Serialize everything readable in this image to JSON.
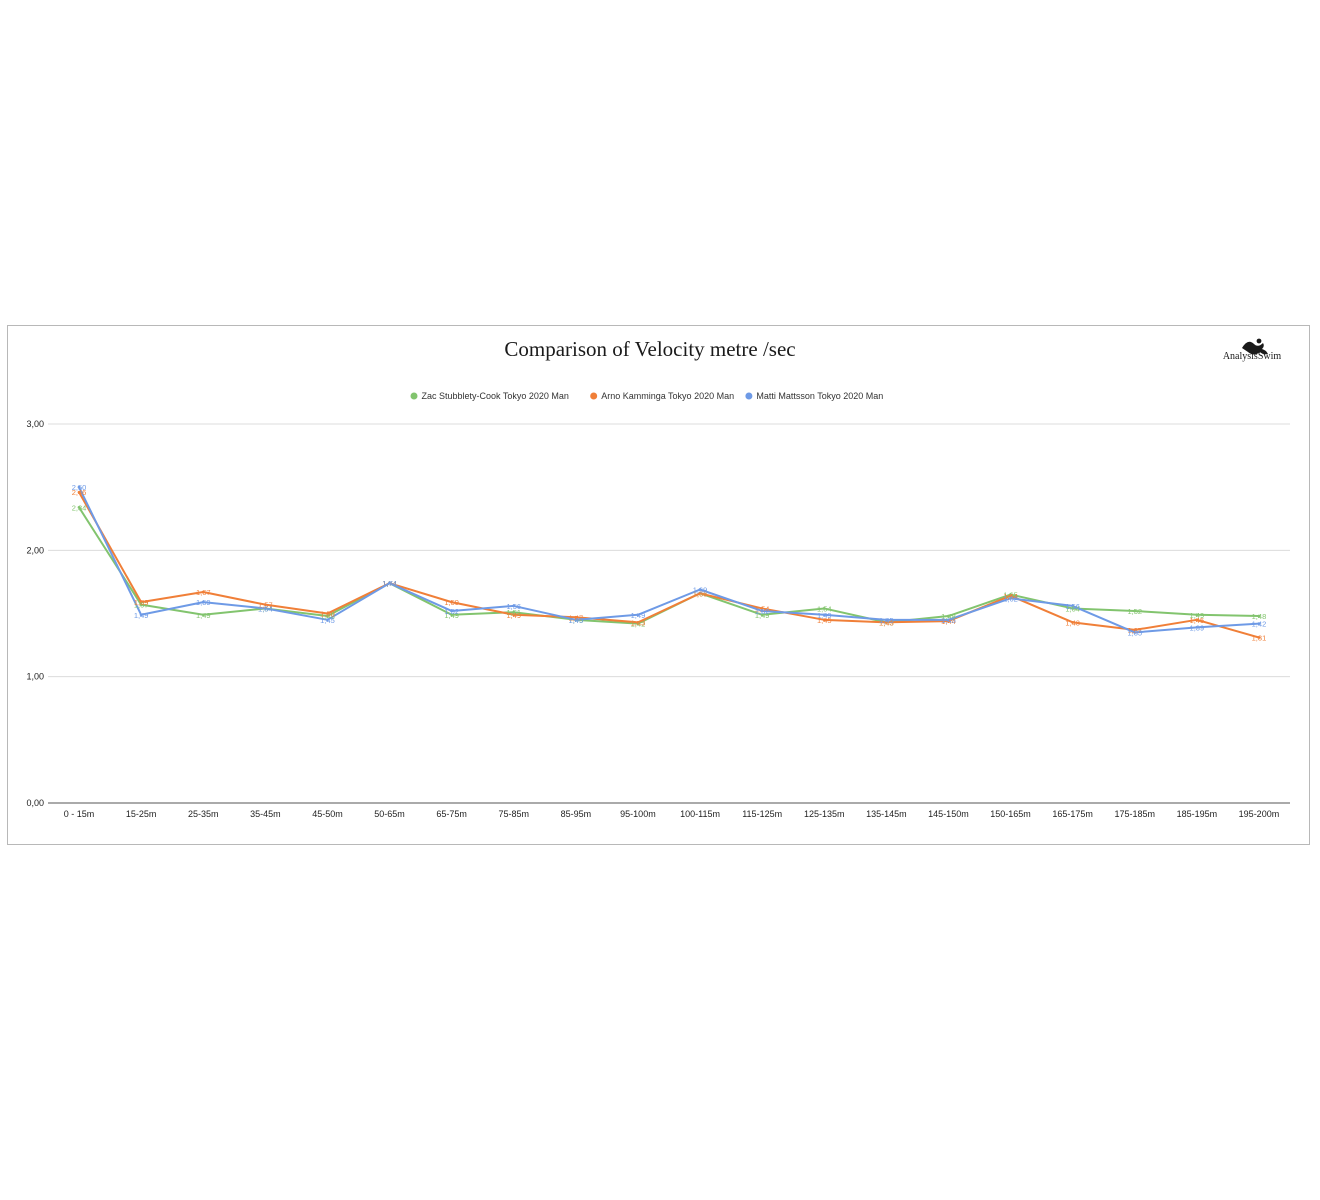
{
  "chart_data": {
    "type": "line",
    "title": "Comparison of Velocity metre /sec",
    "logo": "AnalysisSwim",
    "xlabel": "",
    "ylabel": "",
    "ylim": [
      0,
      3
    ],
    "y_ticks": [
      "0,00",
      "1,00",
      "2,00",
      "3,00"
    ],
    "y_tick_values": [
      0,
      1,
      2,
      3
    ],
    "legend_position": "top",
    "grid": true,
    "categories": [
      "0 - 15m",
      "15-25m",
      "25-35m",
      "35-45m",
      "45-50m",
      "50-65m",
      "65-75m",
      "75-85m",
      "85-95m",
      "95-100m",
      "100-115m",
      "115-125m",
      "125-135m",
      "135-145m",
      "145-150m",
      "150-165m",
      "165-175m",
      "175-185m",
      "185-195m",
      "195-200m"
    ],
    "series": [
      {
        "name": "Zac Stubblety-Cook Tokyo 2020 Man",
        "color": "#82c46e",
        "values": [
          2.34,
          1.57,
          1.49,
          1.54,
          1.48,
          1.74,
          1.49,
          1.51,
          1.45,
          1.42,
          1.66,
          1.49,
          1.54,
          1.43,
          1.48,
          1.65,
          1.54,
          1.52,
          1.49,
          1.48
        ],
        "labels": [
          "2,34",
          "1,57",
          "1,49",
          "1,54",
          "1,48",
          "1,74",
          "1,49",
          "1,51",
          "1,45",
          "1,42",
          "1,66",
          "1,49",
          "1,54",
          "1,43",
          "1,48",
          "1,65",
          "1,54",
          "1,52",
          "1,49",
          "1,48"
        ]
      },
      {
        "name": "Arno Kamminga Tokyo 2020 Man",
        "color": "#f07f38",
        "values": [
          2.46,
          1.59,
          1.67,
          1.57,
          1.5,
          1.74,
          1.59,
          1.49,
          1.47,
          1.43,
          1.66,
          1.54,
          1.45,
          1.43,
          1.44,
          1.64,
          1.43,
          1.37,
          1.45,
          1.31
        ],
        "labels": [
          "2,46",
          "1,59",
          "1,67",
          "1,57",
          "1,50",
          "1,74",
          "1,59",
          "1,49",
          "1,47",
          "1,43",
          "1,66",
          "1,54",
          "1,45",
          "1,43",
          "1,44",
          "1,64",
          "1,43",
          "1,37",
          "1,45",
          "1,31"
        ]
      },
      {
        "name": "Matti Mattsson Tokyo 2020 Man",
        "color": "#6e9ae6",
        "values": [
          2.5,
          1.49,
          1.59,
          1.54,
          1.45,
          1.74,
          1.52,
          1.56,
          1.45,
          1.49,
          1.69,
          1.52,
          1.49,
          1.45,
          1.45,
          1.62,
          1.56,
          1.35,
          1.39,
          1.42
        ],
        "labels": [
          "2,50",
          "1,49",
          "1,59",
          "1,54",
          "1,45",
          "1,74",
          "1,52",
          "1,56",
          "1,45",
          "1,49",
          "1,69",
          "1,52",
          "1,49",
          "1,45",
          "1,45",
          "1,62",
          "1,56",
          "1,35",
          "1,39",
          "1,42"
        ]
      }
    ]
  }
}
